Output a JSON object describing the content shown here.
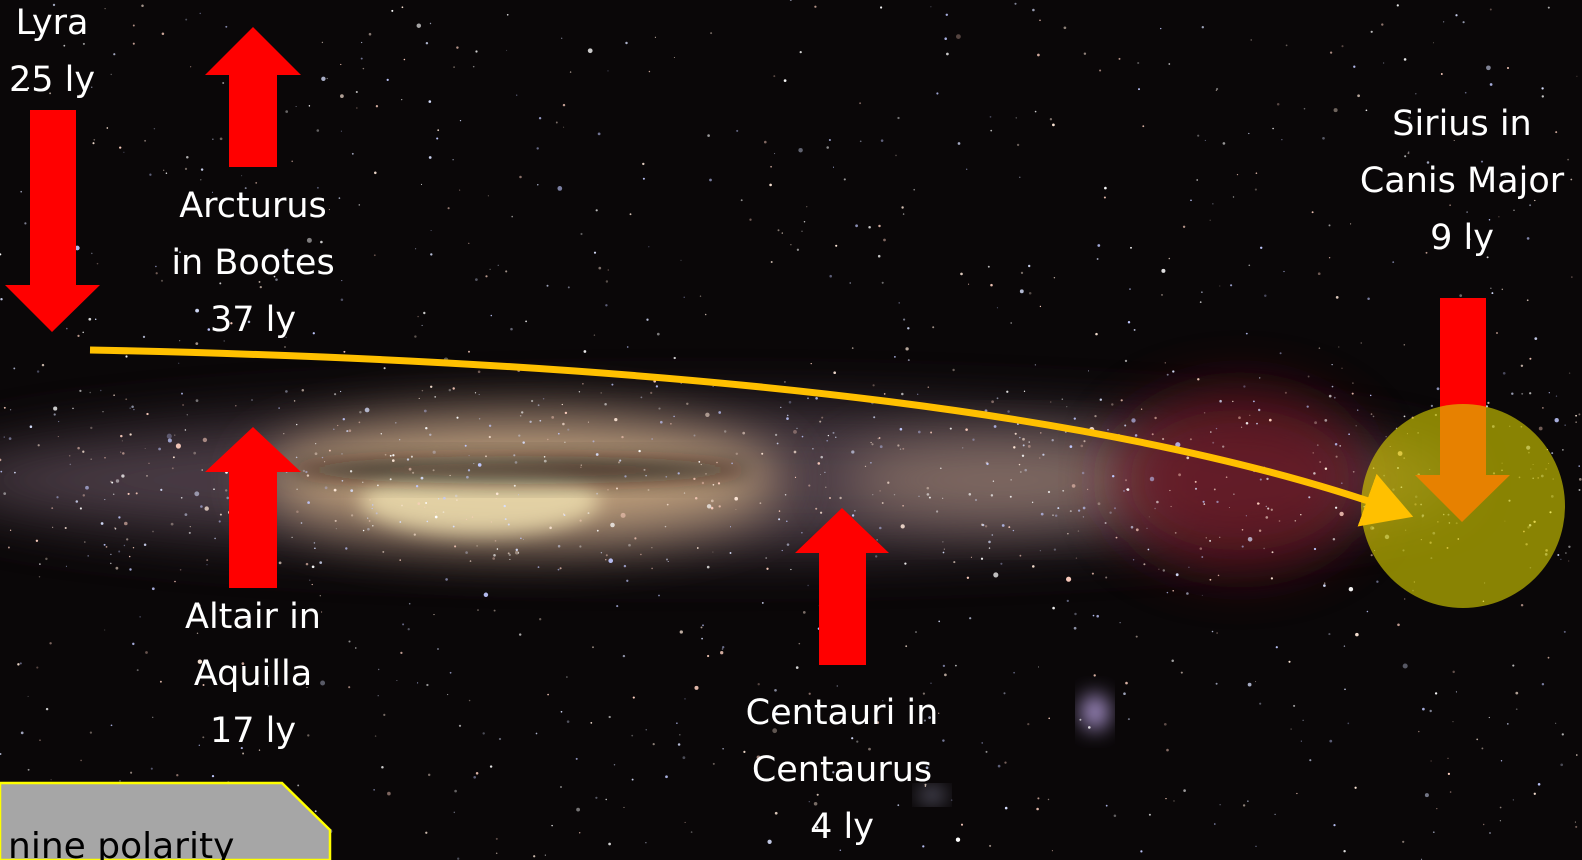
{
  "labels": [
    {
      "lines": [
        "Lyra",
        "25 ly"
      ]
    },
    {
      "lines": [
        "Arcturus",
        "in Bootes",
        "37 ly"
      ]
    },
    {
      "lines": [
        "Sirius in",
        "Canis Major",
        "9 ly"
      ]
    },
    {
      "lines": [
        "Altair in",
        "Aquilla",
        "17 ly"
      ]
    },
    {
      "lines": [
        "Centauri in",
        "Centaurus",
        "4 ly"
      ]
    }
  ],
  "note": "nine polarity"
}
